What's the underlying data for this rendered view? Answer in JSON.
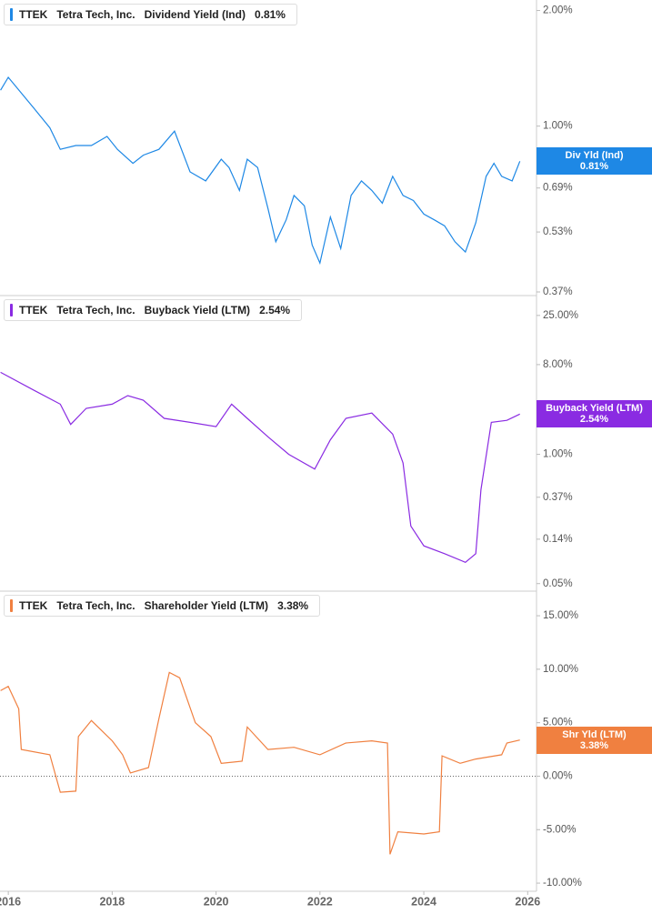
{
  "chart_data": [
    {
      "type": "line",
      "log_scale": true,
      "ticker": "TTEK",
      "company": "Tetra Tech, Inc.",
      "latest_label": "0.81%",
      "tag": "Div Yld (Ind)",
      "xlim": [
        2015.84,
        2026.17
      ],
      "ylim": [
        0.362,
        2.13
      ],
      "yticks": [
        {
          "value": 2,
          "label": "2.00%"
        },
        {
          "value": 1,
          "label": "1.00%"
        },
        {
          "value": 0.69,
          "label": "0.69%"
        },
        {
          "value": 0.53,
          "label": "0.53%"
        },
        {
          "value": 0.37,
          "label": "0.37%"
        }
      ],
      "series": [
        {
          "name": "Dividend Yield (Ind)",
          "color": "#1e88e5",
          "x": [
            2015.85,
            2016,
            2016.5,
            2016.8,
            2017,
            2017.3,
            2017.6,
            2017.9,
            2018.1,
            2018.4,
            2018.6,
            2018.9,
            2019.2,
            2019.5,
            2019.8,
            2020.1,
            2020.25,
            2020.45,
            2020.6,
            2020.8,
            2021,
            2021.15,
            2021.35,
            2021.5,
            2021.7,
            2021.85,
            2022,
            2022.2,
            2022.4,
            2022.6,
            2022.8,
            2023,
            2023.2,
            2023.4,
            2023.6,
            2023.8,
            2024,
            2024.2,
            2024.4,
            2024.6,
            2024.8,
            2025,
            2025.2,
            2025.35,
            2025.5,
            2025.7,
            2025.85
          ],
          "values": [
            1.24,
            1.34,
            1.11,
            0.99,
            0.87,
            0.89,
            0.89,
            0.94,
            0.87,
            0.8,
            0.84,
            0.87,
            0.97,
            0.76,
            0.72,
            0.82,
            0.78,
            0.68,
            0.82,
            0.78,
            0.61,
            0.5,
            0.57,
            0.66,
            0.62,
            0.49,
            0.44,
            0.58,
            0.48,
            0.66,
            0.72,
            0.68,
            0.63,
            0.74,
            0.66,
            0.64,
            0.59,
            0.57,
            0.55,
            0.5,
            0.47,
            0.56,
            0.74,
            0.8,
            0.74,
            0.72,
            0.81
          ]
        }
      ]
    },
    {
      "type": "line",
      "log_scale": true,
      "ticker": "TTEK",
      "company": "Tetra Tech, Inc.",
      "latest_label": "2.54%",
      "tag": "Buyback Yield (LTM)",
      "xlim": [
        2015.84,
        2026.17
      ],
      "ylim": [
        0.042,
        39.6
      ],
      "yticks": [
        {
          "value": 25,
          "label": "25.00%"
        },
        {
          "value": 8,
          "label": "8.00%"
        },
        {
          "value": 1,
          "label": "1.00%"
        },
        {
          "value": 0.37,
          "label": "0.37%"
        },
        {
          "value": 0.14,
          "label": "0.14%"
        },
        {
          "value": 0.05,
          "label": "0.05%"
        }
      ],
      "series": [
        {
          "name": "Buyback Yield (LTM)",
          "color": "#8a2be2",
          "x": [
            2015.85,
            2016.5,
            2017,
            2017.2,
            2017.5,
            2018,
            2018.3,
            2018.6,
            2019,
            2019.5,
            2020,
            2020.3,
            2020.6,
            2021,
            2021.4,
            2021.9,
            2022.2,
            2022.5,
            2023,
            2023.4,
            2023.6,
            2023.75,
            2024,
            2024.4,
            2024.8,
            2025,
            2025.1,
            2025.3,
            2025.6,
            2025.85
          ],
          "values": [
            6.69,
            4.4,
            3.2,
            2.0,
            2.9,
            3.2,
            3.9,
            3.5,
            2.3,
            2.1,
            1.9,
            3.2,
            2.3,
            1.5,
            1.0,
            0.71,
            1.4,
            2.3,
            2.6,
            1.6,
            0.82,
            0.19,
            0.12,
            0.1,
            0.082,
            0.1,
            0.44,
            2.1,
            2.2,
            2.54
          ]
        }
      ]
    },
    {
      "type": "line",
      "log_scale": false,
      "zero_line": true,
      "ticker": "TTEK",
      "company": "Tetra Tech, Inc.",
      "latest_label": "3.38%",
      "tag": "Shr Yld (LTM)",
      "xlim": [
        2015.84,
        2026.17
      ],
      "xticks": [
        2016,
        2018,
        2020,
        2022,
        2024,
        2026
      ],
      "ylim": [
        -10.76,
        17.3
      ],
      "yticks": [
        {
          "value": 15,
          "label": "15.00%"
        },
        {
          "value": 10,
          "label": "10.00%"
        },
        {
          "value": 5,
          "label": "5.00%"
        },
        {
          "value": 0,
          "label": "0.00%"
        },
        {
          "value": -5,
          "label": "-5.00%"
        },
        {
          "value": -10,
          "label": "-10.00%"
        }
      ],
      "series": [
        {
          "name": "Shareholder Yield (LTM)",
          "color": "#f08040",
          "x": [
            2015.85,
            2016,
            2016.2,
            2016.25,
            2016.8,
            2017,
            2017.3,
            2017.35,
            2017.6,
            2018,
            2018.2,
            2018.35,
            2018.7,
            2018.9,
            2019.1,
            2019.3,
            2019.6,
            2019.9,
            2020.1,
            2020.5,
            2020.6,
            2021,
            2021.5,
            2022,
            2022.5,
            2023,
            2023.3,
            2023.35,
            2023.5,
            2024,
            2024.3,
            2024.35,
            2024.7,
            2025,
            2025.5,
            2025.6,
            2025.85
          ],
          "values": [
            8.0,
            8.4,
            6.3,
            2.5,
            2.0,
            -1.5,
            -1.4,
            3.7,
            5.2,
            3.3,
            2.0,
            0.3,
            0.8,
            5.4,
            9.7,
            9.2,
            5.0,
            3.7,
            1.2,
            1.4,
            4.6,
            2.5,
            2.7,
            2.0,
            3.1,
            3.3,
            3.1,
            -7.3,
            -5.2,
            -5.4,
            -5.2,
            1.9,
            1.2,
            1.6,
            2.0,
            3.1,
            3.38
          ]
        }
      ]
    }
  ]
}
